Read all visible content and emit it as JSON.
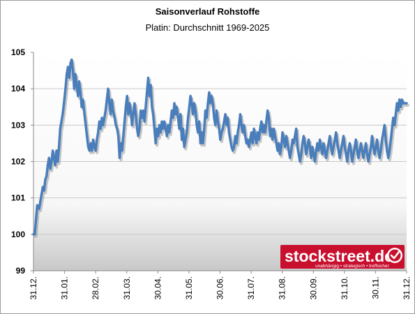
{
  "chart_data": {
    "type": "line",
    "title": "Saisonverlauf Rohstoffe",
    "subtitle": "Platin: Durchschnitt 1969-2025",
    "xlabel": "",
    "ylabel": "",
    "ylim": [
      99,
      105
    ],
    "y_ticks": [
      "99",
      "100",
      "101",
      "102",
      "103",
      "104",
      "105"
    ],
    "x_ticks": [
      "31.12.",
      "31.01.",
      "28.02.",
      "31.03.",
      "30.04.",
      "31.05.",
      "30.06.",
      "31.07.",
      "31.08.",
      "30.09.",
      "31.10.",
      "30.11.",
      "31.12."
    ],
    "x_range": [
      0,
      12
    ],
    "series": [
      {
        "color": "#4a7ebb",
        "points": [
          [
            0.0,
            100.0
          ],
          [
            0.04,
            100.0
          ],
          [
            0.08,
            100.4
          ],
          [
            0.12,
            100.8
          ],
          [
            0.18,
            100.7
          ],
          [
            0.22,
            100.9
          ],
          [
            0.26,
            101.1
          ],
          [
            0.3,
            101.3
          ],
          [
            0.34,
            101.2
          ],
          [
            0.38,
            101.5
          ],
          [
            0.42,
            101.6
          ],
          [
            0.46,
            101.9
          ],
          [
            0.5,
            102.1
          ],
          [
            0.54,
            101.8
          ],
          [
            0.58,
            102.0
          ],
          [
            0.62,
            102.3
          ],
          [
            0.66,
            102.1
          ],
          [
            0.7,
            101.9
          ],
          [
            0.74,
            102.3
          ],
          [
            0.78,
            102.0
          ],
          [
            0.82,
            102.4
          ],
          [
            0.86,
            102.9
          ],
          [
            0.9,
            103.1
          ],
          [
            0.94,
            103.3
          ],
          [
            0.98,
            103.6
          ],
          [
            1.03,
            104.0
          ],
          [
            1.07,
            104.4
          ],
          [
            1.11,
            104.6
          ],
          [
            1.15,
            104.3
          ],
          [
            1.19,
            104.7
          ],
          [
            1.23,
            104.8
          ],
          [
            1.27,
            104.5
          ],
          [
            1.31,
            104.0
          ],
          [
            1.35,
            104.4
          ],
          [
            1.39,
            104.1
          ],
          [
            1.43,
            103.8
          ],
          [
            1.47,
            104.2
          ],
          [
            1.51,
            103.9
          ],
          [
            1.55,
            103.5
          ],
          [
            1.59,
            103.7
          ],
          [
            1.64,
            103.3
          ],
          [
            1.68,
            103.0
          ],
          [
            1.72,
            102.7
          ],
          [
            1.76,
            102.4
          ],
          [
            1.8,
            102.3
          ],
          [
            1.84,
            102.5
          ],
          [
            1.88,
            102.3
          ],
          [
            1.92,
            102.6
          ],
          [
            1.96,
            102.4
          ],
          [
            2.0,
            102.3
          ],
          [
            2.04,
            102.6
          ],
          [
            2.08,
            102.8
          ],
          [
            2.12,
            103.1
          ],
          [
            2.16,
            102.9
          ],
          [
            2.2,
            103.2
          ],
          [
            2.24,
            103.0
          ],
          [
            2.28,
            103.2
          ],
          [
            2.32,
            103.4
          ],
          [
            2.36,
            103.7
          ],
          [
            2.4,
            104.0
          ],
          [
            2.44,
            103.6
          ],
          [
            2.48,
            103.3
          ],
          [
            2.52,
            103.7
          ],
          [
            2.56,
            103.4
          ],
          [
            2.61,
            103.2
          ],
          [
            2.65,
            103.0
          ],
          [
            2.69,
            102.9
          ],
          [
            2.73,
            102.7
          ],
          [
            2.77,
            102.1
          ],
          [
            2.81,
            102.5
          ],
          [
            2.85,
            102.3
          ],
          [
            2.89,
            102.7
          ],
          [
            2.93,
            103.1
          ],
          [
            2.97,
            103.5
          ],
          [
            3.01,
            103.8
          ],
          [
            3.05,
            103.3
          ],
          [
            3.09,
            103.6
          ],
          [
            3.13,
            103.4
          ],
          [
            3.17,
            103.0
          ],
          [
            3.21,
            103.3
          ],
          [
            3.25,
            103.6
          ],
          [
            3.29,
            103.3
          ],
          [
            3.33,
            102.9
          ],
          [
            3.37,
            102.7
          ],
          [
            3.41,
            102.9
          ],
          [
            3.45,
            103.4
          ],
          [
            3.49,
            103.2
          ],
          [
            3.53,
            103.4
          ],
          [
            3.57,
            103.1
          ],
          [
            3.61,
            103.5
          ],
          [
            3.65,
            103.9
          ],
          [
            3.69,
            104.3
          ],
          [
            3.73,
            103.8
          ],
          [
            3.77,
            104.1
          ],
          [
            3.81,
            103.5
          ],
          [
            3.85,
            103.3
          ],
          [
            3.89,
            102.9
          ],
          [
            3.93,
            102.5
          ],
          [
            3.97,
            102.9
          ],
          [
            4.01,
            102.7
          ],
          [
            4.05,
            103.0
          ],
          [
            4.09,
            102.8
          ],
          [
            4.13,
            103.1
          ],
          [
            4.17,
            102.9
          ],
          [
            4.21,
            103.1
          ],
          [
            4.25,
            102.9
          ],
          [
            4.29,
            102.7
          ],
          [
            4.33,
            103.0
          ],
          [
            4.37,
            102.8
          ],
          [
            4.41,
            103.1
          ],
          [
            4.45,
            103.4
          ],
          [
            4.49,
            103.2
          ],
          [
            4.53,
            103.6
          ],
          [
            4.57,
            103.3
          ],
          [
            4.61,
            103.5
          ],
          [
            4.65,
            103.2
          ],
          [
            4.69,
            102.9
          ],
          [
            4.73,
            103.3
          ],
          [
            4.77,
            102.6
          ],
          [
            4.81,
            102.9
          ],
          [
            4.85,
            102.4
          ],
          [
            4.89,
            102.6
          ],
          [
            4.93,
            102.8
          ],
          [
            4.97,
            103.2
          ],
          [
            5.01,
            103.5
          ],
          [
            5.05,
            103.8
          ],
          [
            5.09,
            103.6
          ],
          [
            5.13,
            103.3
          ],
          [
            5.17,
            103.6
          ],
          [
            5.21,
            103.4
          ],
          [
            5.25,
            103.0
          ],
          [
            5.29,
            102.8
          ],
          [
            5.33,
            103.1
          ],
          [
            5.37,
            102.5
          ],
          [
            5.41,
            102.8
          ],
          [
            5.45,
            102.5
          ],
          [
            5.49,
            102.9
          ],
          [
            5.53,
            103.4
          ],
          [
            5.57,
            103.2
          ],
          [
            5.61,
            103.6
          ],
          [
            5.65,
            103.9
          ],
          [
            5.69,
            103.6
          ],
          [
            5.73,
            103.8
          ],
          [
            5.77,
            103.6
          ],
          [
            5.81,
            103.2
          ],
          [
            5.85,
            103.0
          ],
          [
            5.89,
            103.4
          ],
          [
            5.93,
            103.1
          ],
          [
            5.97,
            102.9
          ],
          [
            6.01,
            102.6
          ],
          [
            6.05,
            102.8
          ],
          [
            6.09,
            102.9
          ],
          [
            6.13,
            103.1
          ],
          [
            6.17,
            103.3
          ],
          [
            6.21,
            103.0
          ],
          [
            6.25,
            103.2
          ],
          [
            6.29,
            102.8
          ],
          [
            6.33,
            102.6
          ],
          [
            6.37,
            102.4
          ],
          [
            6.41,
            102.3
          ],
          [
            6.45,
            102.4
          ],
          [
            6.49,
            102.7
          ],
          [
            6.53,
            102.5
          ],
          [
            6.57,
            102.8
          ],
          [
            6.61,
            103.0
          ],
          [
            6.65,
            103.3
          ],
          [
            6.69,
            103.0
          ],
          [
            6.73,
            102.8
          ],
          [
            6.77,
            103.0
          ],
          [
            6.81,
            102.7
          ],
          [
            6.85,
            102.5
          ],
          [
            6.89,
            102.6
          ],
          [
            6.93,
            102.4
          ],
          [
            6.97,
            102.6
          ],
          [
            7.01,
            102.8
          ],
          [
            7.05,
            102.5
          ],
          [
            7.09,
            102.9
          ],
          [
            7.13,
            102.7
          ],
          [
            7.17,
            102.5
          ],
          [
            7.21,
            102.8
          ],
          [
            7.25,
            102.6
          ],
          [
            7.29,
            102.9
          ],
          [
            7.33,
            103.1
          ],
          [
            7.37,
            102.8
          ],
          [
            7.41,
            103.0
          ],
          [
            7.45,
            102.8
          ],
          [
            7.49,
            103.1
          ],
          [
            7.53,
            103.4
          ],
          [
            7.57,
            103.2
          ],
          [
            7.61,
            102.7
          ],
          [
            7.65,
            102.9
          ],
          [
            7.69,
            102.6
          ],
          [
            7.73,
            102.9
          ],
          [
            7.77,
            102.7
          ],
          [
            7.81,
            102.5
          ],
          [
            7.85,
            102.3
          ],
          [
            7.89,
            102.5
          ],
          [
            7.93,
            102.2
          ],
          [
            7.97,
            102.4
          ],
          [
            8.01,
            102.8
          ],
          [
            8.05,
            102.6
          ],
          [
            8.09,
            102.4
          ],
          [
            8.13,
            102.7
          ],
          [
            8.17,
            102.5
          ],
          [
            8.21,
            102.3
          ],
          [
            8.25,
            102.1
          ],
          [
            8.29,
            102.3
          ],
          [
            8.33,
            102.6
          ],
          [
            8.37,
            102.5
          ],
          [
            8.41,
            102.7
          ],
          [
            8.45,
            102.9
          ],
          [
            8.49,
            102.4
          ],
          [
            8.53,
            102.2
          ],
          [
            8.57,
            102.0
          ],
          [
            8.61,
            102.2
          ],
          [
            8.65,
            102.5
          ],
          [
            8.69,
            102.7
          ],
          [
            8.73,
            102.5
          ],
          [
            8.77,
            102.2
          ],
          [
            8.81,
            102.4
          ],
          [
            8.85,
            102.6
          ],
          [
            8.89,
            102.4
          ],
          [
            8.93,
            102.1
          ],
          [
            8.97,
            102.4
          ],
          [
            9.01,
            102.2
          ],
          [
            9.05,
            102.0
          ],
          [
            9.09,
            102.3
          ],
          [
            9.13,
            102.5
          ],
          [
            9.17,
            102.3
          ],
          [
            9.21,
            102.6
          ],
          [
            9.25,
            102.4
          ],
          [
            9.29,
            102.2
          ],
          [
            9.33,
            102.5
          ],
          [
            9.37,
            102.3
          ],
          [
            9.41,
            102.1
          ],
          [
            9.45,
            102.3
          ],
          [
            9.49,
            102.5
          ],
          [
            9.53,
            102.7
          ],
          [
            9.57,
            102.4
          ],
          [
            9.61,
            102.2
          ],
          [
            9.65,
            102.4
          ],
          [
            9.69,
            102.6
          ],
          [
            9.73,
            102.8
          ],
          [
            9.77,
            102.5
          ],
          [
            9.81,
            102.3
          ],
          [
            9.85,
            102.1
          ],
          [
            9.89,
            102.3
          ],
          [
            9.93,
            102.5
          ],
          [
            9.97,
            102.7
          ],
          [
            10.01,
            102.4
          ],
          [
            10.05,
            102.2
          ],
          [
            10.09,
            102.0
          ],
          [
            10.13,
            102.3
          ],
          [
            10.17,
            102.5
          ],
          [
            10.21,
            102.3
          ],
          [
            10.25,
            102.0
          ],
          [
            10.29,
            102.2
          ],
          [
            10.33,
            102.4
          ],
          [
            10.37,
            102.6
          ],
          [
            10.41,
            102.3
          ],
          [
            10.45,
            102.1
          ],
          [
            10.49,
            102.3
          ],
          [
            10.53,
            102.5
          ],
          [
            10.57,
            102.3
          ],
          [
            10.61,
            102.1
          ],
          [
            10.65,
            102.3
          ],
          [
            10.69,
            102.5
          ],
          [
            10.73,
            102.2
          ],
          [
            10.77,
            102.0
          ],
          [
            10.81,
            102.2
          ],
          [
            10.85,
            102.4
          ],
          [
            10.89,
            102.7
          ],
          [
            10.93,
            102.4
          ],
          [
            10.97,
            102.2
          ],
          [
            11.01,
            102.4
          ],
          [
            11.05,
            102.6
          ],
          [
            11.09,
            102.3
          ],
          [
            11.13,
            102.1
          ],
          [
            11.17,
            102.3
          ],
          [
            11.21,
            102.6
          ],
          [
            11.25,
            102.8
          ],
          [
            11.29,
            103.0
          ],
          [
            11.33,
            102.6
          ],
          [
            11.37,
            102.3
          ],
          [
            11.41,
            102.1
          ],
          [
            11.45,
            102.3
          ],
          [
            11.49,
            102.6
          ],
          [
            11.53,
            102.9
          ],
          [
            11.57,
            103.2
          ],
          [
            11.61,
            103.0
          ],
          [
            11.65,
            103.3
          ],
          [
            11.69,
            103.6
          ],
          [
            11.73,
            103.4
          ],
          [
            11.77,
            103.7
          ],
          [
            11.81,
            103.5
          ],
          [
            11.85,
            103.7
          ],
          [
            11.89,
            103.6
          ],
          [
            11.93,
            103.6
          ],
          [
            11.97,
            103.6
          ],
          [
            12.0,
            103.6
          ]
        ]
      }
    ]
  },
  "watermark": {
    "brand": "stockstreet.de",
    "tagline": "unabhängig • strategisch • treffsicher",
    "bg_color": "#c8102e"
  }
}
